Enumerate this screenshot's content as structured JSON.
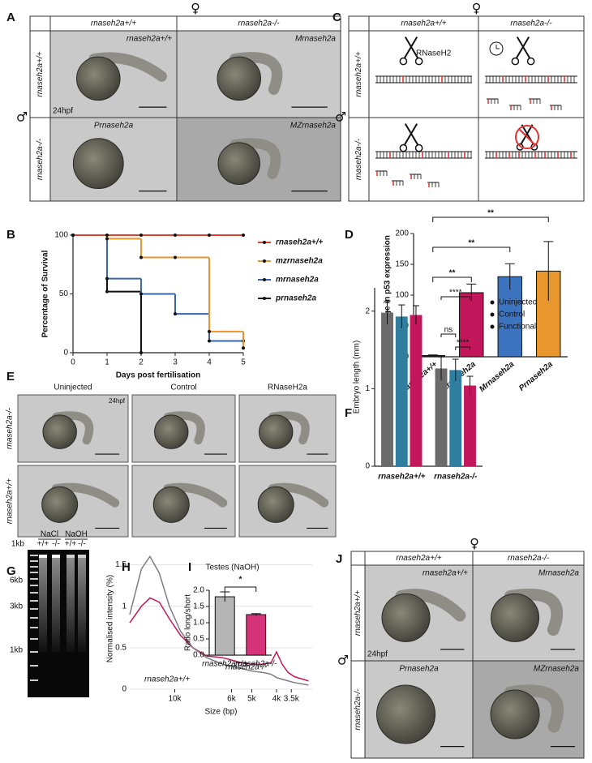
{
  "panel_a": {
    "letter": "A",
    "female": "♀",
    "male": "♂",
    "columns": [
      "rnaseh2a+/+",
      "rnaseh2a-/-"
    ],
    "rows": [
      "rnaseh2a+/+",
      "rnaseh2a-/-"
    ],
    "images": [
      "rnaseh2a+/+",
      "Mrnaseh2a",
      "Prnaseh2a",
      "MZrnaseh2a"
    ],
    "stage": "24hpf"
  },
  "panel_c": {
    "letter": "C",
    "female": "♀",
    "male": "♂",
    "columns": [
      "rnaseh2a+/+",
      "rnaseh2a-/-"
    ],
    "rows": [
      "rnaseh2a+/+",
      "rnaseh2a-/-"
    ],
    "enzyme": "RNaseH2"
  },
  "panel_e": {
    "letter": "E",
    "columns": [
      "Uninjected",
      "Control",
      "RNaseH2a"
    ],
    "rows": [
      "rnaseh2a-/-",
      "rnaseh2a+/+"
    ],
    "stage": "24hpf"
  },
  "panel_g": {
    "letter": "G",
    "marker": "1kb",
    "conditions": [
      "NaCl",
      "NaOH"
    ],
    "lanes": [
      "+/+",
      "-/-",
      "+/+",
      "-/-"
    ],
    "sizes": [
      "6kb",
      "3kb",
      "1kb"
    ]
  },
  "panel_j": {
    "letter": "J",
    "female": "♀",
    "male": "♂",
    "columns": [
      "rnaseh2a+/+",
      "rnaseh2a-/-"
    ],
    "rows": [
      "rnaseh2a+/+",
      "rnaseh2a-/-"
    ],
    "images": [
      "rnaseh2a+/+",
      "Mrnaseh2a",
      "Prnaseh2a",
      "MZrnaseh2a"
    ],
    "stage": "24hpf"
  },
  "chart_data": [
    {
      "panel": "B",
      "type": "line",
      "step": true,
      "xlabel": "Days post fertilisation",
      "ylabel": "Percentage of Survival",
      "x": [
        0,
        1,
        2,
        3,
        4,
        5
      ],
      "xlim": [
        0,
        5
      ],
      "xticks": [
        0,
        1,
        2,
        3,
        4,
        5
      ],
      "ylim": [
        0,
        100
      ],
      "yticks": [
        0,
        50,
        100
      ],
      "legend": "right",
      "series": [
        {
          "name": "rnaseh2a+/+",
          "color": "#d9452b",
          "values": [
            100,
            100,
            100,
            100,
            100,
            100
          ]
        },
        {
          "name": "mzrnaseh2a",
          "color": "#e9952f",
          "values": [
            100,
            97,
            81,
            81,
            18,
            4
          ]
        },
        {
          "name": "mrnaseh2a",
          "color": "#3a66b0",
          "values": [
            100,
            63,
            50,
            33,
            10,
            10
          ]
        },
        {
          "name": "prnaseh2a",
          "color": "#111111",
          "values": [
            100,
            52,
            0,
            null,
            null,
            null
          ]
        }
      ]
    },
    {
      "panel": "D",
      "type": "bar",
      "ylabel": "Fold Change in p53 expression",
      "categories": [
        "rnaseh2a+/+",
        "MZrnaseh2a",
        "Mrnaseh2a",
        "Prnaseh2a"
      ],
      "values": [
        2,
        104,
        130,
        139
      ],
      "errors": [
        1,
        14,
        21,
        48
      ],
      "colors": [
        "#222222",
        "#c2185b",
        "#3d74c0",
        "#e8962e"
      ],
      "ylim": [
        0,
        200
      ],
      "yticks": [
        0,
        50,
        100,
        150,
        200
      ],
      "annotations": [
        "**",
        "**",
        "**"
      ]
    },
    {
      "panel": "F",
      "type": "grouped_bar",
      "ylabel": "Embryo length (mm)",
      "categories": [
        "rnaseh2a+/+",
        "rnaseh2a-/-"
      ],
      "ylim": [
        0,
        2.3
      ],
      "yticks": [
        0,
        1,
        2
      ],
      "legend": "right",
      "series": [
        {
          "name": "Uninjected",
          "color": "#6b6b6b",
          "values": [
            1.98,
            1.26
          ],
          "errors": [
            0.15,
            0.15
          ]
        },
        {
          "name": "Control",
          "color": "#2f7ea0",
          "values": [
            1.93,
            1.24
          ],
          "errors": [
            0.15,
            0.14
          ]
        },
        {
          "name": "Functional",
          "color": "#c2185b",
          "values": [
            1.95,
            1.04
          ],
          "errors": [
            0.12,
            0.12
          ]
        }
      ],
      "annotations": [
        "****",
        "ns",
        "****"
      ]
    },
    {
      "panel": "H",
      "type": "line",
      "xlabel": "Size (bp)",
      "ylabel": "Normalised intensity (%)",
      "xscale": "log",
      "grid": true,
      "x": [
        15000,
        13500,
        12500,
        11500,
        10500,
        9500,
        8500,
        7500,
        6500,
        5500,
        5000,
        4500,
        4200,
        4000,
        3800,
        3600,
        3400,
        3000
      ],
      "xlim": [
        15000,
        2900
      ],
      "xticks": [
        {
          "value": 10000,
          "label": "10k"
        },
        {
          "value": 6000,
          "label": "6k"
        },
        {
          "value": 5000,
          "label": "5k"
        },
        {
          "value": 4000,
          "label": "4k"
        },
        {
          "value": 3500,
          "label": "3.5k"
        }
      ],
      "ylim": [
        0,
        1.7
      ],
      "yticks": [
        0,
        0.5,
        1,
        1.5
      ],
      "series": [
        {
          "name": "rnaseh2a+/+",
          "color": "#7c7c86",
          "values": [
            0.9,
            1.45,
            1.6,
            1.4,
            1.0,
            0.7,
            0.5,
            0.38,
            0.3,
            0.25,
            0.22,
            0.2,
            0.18,
            0.14,
            0.12,
            0.1,
            0.08,
            0.05
          ]
        },
        {
          "name": "rnaseh2a-/-",
          "color": "#c2185b",
          "values": [
            0.8,
            1.0,
            1.1,
            1.05,
            0.85,
            0.65,
            0.5,
            0.4,
            0.38,
            0.32,
            0.3,
            0.3,
            0.32,
            0.45,
            0.3,
            0.2,
            0.15,
            0.1
          ]
        }
      ]
    },
    {
      "panel": "I",
      "type": "bar",
      "title": "Testes (NaOH)",
      "ylabel": "Ratio long/short",
      "categories": [
        "rnaseh2a+/+",
        "rnaseh2a-/-"
      ],
      "values": [
        1.8,
        1.25
      ],
      "errors": [
        0.15,
        0.03
      ],
      "colors": [
        "#b5b5b5",
        "#d6337a"
      ],
      "ylim": [
        0,
        2
      ],
      "yticks": [
        {
          "value": 0,
          "label": "0.0"
        },
        {
          "value": 0.5,
          "label": "0.5"
        },
        {
          "value": 1,
          "label": "1.0"
        },
        {
          "value": 1.5,
          "label": "1.5"
        },
        {
          "value": 2,
          "label": "2.0"
        }
      ],
      "annotations": [
        "*"
      ]
    }
  ]
}
